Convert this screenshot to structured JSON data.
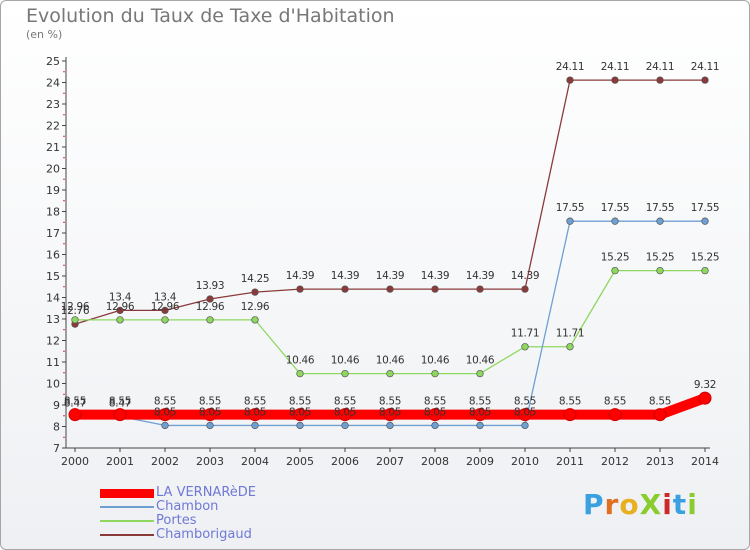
{
  "chart_data": {
    "type": "line",
    "title": "Evolution du Taux de Taxe d'Habitation",
    "ylabel": "(en %)",
    "x": [
      "2000",
      "2001",
      "2002",
      "2003",
      "2004",
      "2005",
      "2006",
      "2007",
      "2008",
      "2009",
      "2010",
      "2011",
      "2012",
      "2013",
      "2014"
    ],
    "ylim": [
      7,
      25
    ],
    "yticks": [
      7,
      8,
      9,
      10,
      11,
      12,
      13,
      14,
      15,
      16,
      17,
      18,
      19,
      20,
      21,
      22,
      23,
      24,
      25
    ],
    "grid": false,
    "legend_position": "bottom-left",
    "series": [
      {
        "name": "LA VERNARèDE",
        "color": "#ff0000",
        "values": [
          8.55,
          8.55,
          8.55,
          8.55,
          8.55,
          8.55,
          8.55,
          8.55,
          8.55,
          8.55,
          8.55,
          8.55,
          8.55,
          8.55,
          9.32
        ],
        "labels": [
          "8.55",
          "8.55",
          "8.55",
          "8.55",
          "8.55",
          "8.55",
          "8.55",
          "8.55",
          "8.55",
          "8.55",
          "8.55",
          "8.55",
          "8.55",
          "8.55",
          "9.32"
        ]
      },
      {
        "name": "Chambon",
        "color": "#6fa0d4",
        "values": [
          8.47,
          8.47,
          8.05,
          8.05,
          8.05,
          8.05,
          8.05,
          8.05,
          8.05,
          8.05,
          8.05,
          17.55,
          17.55,
          17.55,
          17.55
        ],
        "labels": [
          "8.47",
          "8.47",
          "8.05",
          "8.05",
          "8.05",
          "8.05",
          "8.05",
          "8.05",
          "8.05",
          "8.05",
          "8.05",
          "17.55",
          "17.55",
          "17.55",
          "17.55"
        ]
      },
      {
        "name": "Portes",
        "color": "#8fd860",
        "values": [
          12.96,
          12.96,
          12.96,
          12.96,
          12.96,
          10.46,
          10.46,
          10.46,
          10.46,
          10.46,
          11.71,
          11.71,
          15.25,
          15.25,
          15.25
        ],
        "labels": [
          "12.96",
          "12.96",
          "12.96",
          "12.96",
          "12.96",
          "10.46",
          "10.46",
          "10.46",
          "10.46",
          "10.46",
          "11.71",
          "11.71",
          "15.25",
          "15.25",
          "15.25"
        ]
      },
      {
        "name": "Chamborigaud",
        "color": "#8b3a3a",
        "values": [
          12.76,
          13.4,
          13.4,
          13.93,
          14.25,
          14.39,
          14.39,
          14.39,
          14.39,
          14.39,
          14.39,
          24.11,
          24.11,
          24.11,
          24.11
        ],
        "labels": [
          "12.76",
          "13.4",
          "13.4",
          "13.93",
          "14.25",
          "14.39",
          "14.39",
          "14.39",
          "14.39",
          "14.39",
          "14.39",
          "24.11",
          "24.11",
          "24.11",
          "24.11"
        ]
      }
    ]
  },
  "logo": {
    "text": "ProXiti"
  }
}
